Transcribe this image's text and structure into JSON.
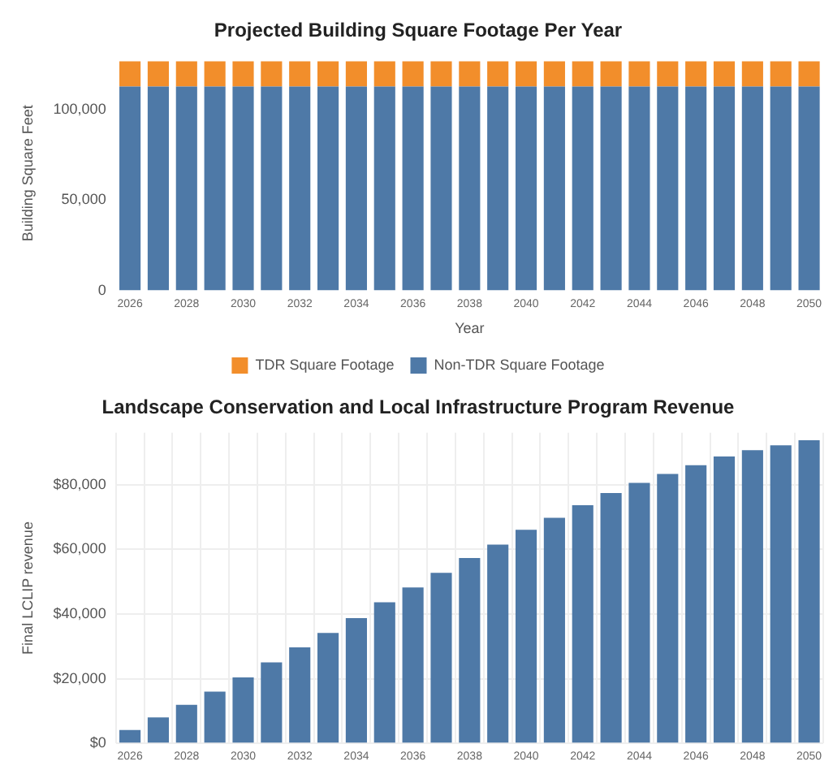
{
  "chart_data": [
    {
      "type": "bar",
      "title": "Projected Building Square Footage Per Year",
      "xlabel": "Year",
      "ylabel": "Building Square Feet",
      "stacked": true,
      "legend": "bottom",
      "grid": false,
      "categories": [
        "2026",
        null,
        "2028",
        null,
        "2030",
        null,
        "2032",
        null,
        "2034",
        null,
        "2036",
        null,
        "2038",
        null,
        "2040",
        null,
        "2042",
        null,
        "2044",
        null,
        "2046",
        null,
        "2048",
        null,
        "2050"
      ],
      "series": [
        {
          "name": "Non-TDR Square Footage",
          "color": "#4e79a7",
          "values": [
            113000,
            113000,
            113000,
            113000,
            113000,
            113000,
            113000,
            113000,
            113000,
            113000,
            113000,
            113000,
            113000,
            113000,
            113000,
            113000,
            113000,
            113000,
            113000,
            113000,
            113000,
            113000,
            113000,
            113000,
            113000
          ]
        },
        {
          "name": "TDR Square Footage",
          "color": "#f28e2b",
          "values": [
            14000,
            14000,
            14000,
            14000,
            14000,
            14000,
            14000,
            14000,
            14000,
            14000,
            14000,
            14000,
            14000,
            14000,
            14000,
            14000,
            14000,
            14000,
            14000,
            14000,
            14000,
            14000,
            14000,
            14000,
            14000
          ]
        }
      ],
      "ylim": [
        0,
        130000
      ],
      "yticks": [
        0,
        {
          "value": 50000,
          "label": "50,000"
        },
        {
          "value": 100000,
          "label": "100,000"
        }
      ]
    },
    {
      "type": "bar",
      "title": "Landscape Conservation and Local Infrastructure Program Revenue",
      "ylabel": "Final LCLIP revenue",
      "grid": true,
      "legend": false,
      "categories": [
        "2026",
        null,
        "2028",
        null,
        "2030",
        null,
        "2032",
        null,
        "2034",
        null,
        "2036",
        null,
        "2038",
        null,
        "2040",
        null,
        "2042",
        null,
        "2044",
        null,
        "2046",
        null,
        "2048",
        null,
        "2050"
      ],
      "series": [
        {
          "color": "#4e79a7",
          "values": [
            4100,
            8000,
            11900,
            16000,
            20400,
            25000,
            29700,
            34100,
            38700,
            43600,
            48200,
            52700,
            57300,
            61400,
            66000,
            69700,
            73600,
            77400,
            80500,
            83300,
            86000,
            88700,
            90600,
            92100,
            93700
          ]
        }
      ],
      "ylim": [
        0,
        96000
      ],
      "yticks": [
        {
          "value": 0,
          "label": "$0"
        },
        {
          "value": 20000,
          "label": "$20,000"
        },
        {
          "value": 40000,
          "label": "$40,000"
        },
        {
          "value": 60000,
          "label": "$60,000"
        },
        {
          "value": 80000,
          "label": "$80,000"
        }
      ]
    }
  ]
}
